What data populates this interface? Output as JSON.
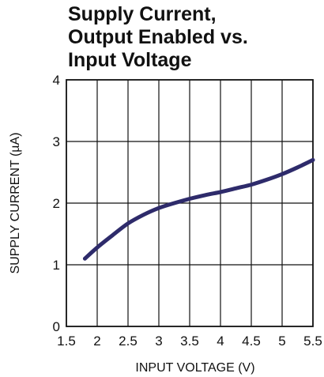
{
  "chart_data": {
    "type": "line",
    "title_lines": [
      "Supply Current,",
      "Output Enabled vs.",
      "Input Voltage"
    ],
    "xlabel": "INPUT VOLTAGE (V)",
    "ylabel": "SUPPLY CURRENT (µA)",
    "xlim": [
      1.5,
      5.5
    ],
    "ylim": [
      0,
      4
    ],
    "x_ticks": [
      "1.5",
      "2",
      "2.5",
      "3",
      "3.5",
      "4",
      "4.5",
      "5",
      "5.5"
    ],
    "y_ticks": [
      "0",
      "1",
      "2",
      "3",
      "4"
    ],
    "grid": true,
    "line_color": "#2e2b6b",
    "series": [
      {
        "x": [
          1.8,
          2.0,
          2.25,
          2.5,
          2.75,
          3.0,
          3.25,
          3.5,
          3.75,
          4.0,
          4.25,
          4.5,
          4.75,
          5.0,
          5.25,
          5.5
        ],
        "values": [
          1.1,
          1.28,
          1.48,
          1.67,
          1.81,
          1.92,
          2.0,
          2.07,
          2.13,
          2.18,
          2.24,
          2.3,
          2.38,
          2.47,
          2.58,
          2.7
        ]
      }
    ]
  }
}
